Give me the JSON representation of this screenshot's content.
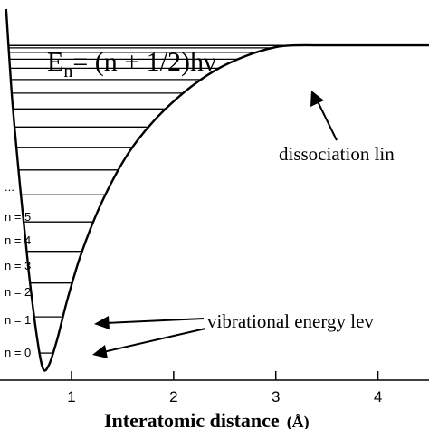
{
  "formula": {
    "lhs": "E",
    "sub": "n",
    "rhs": "= (n + 1/2)hν"
  },
  "annotations": {
    "dissociation": "dissociation lin",
    "vibrational": "vibrational energy lev"
  },
  "level_labels": [
    "...",
    "n = 5",
    "n = 4",
    "n = 3",
    "n = 2",
    "n = 1",
    "n = 0"
  ],
  "chart_data": {
    "type": "line",
    "xlabel": "Interatomic distance",
    "xlabel_unit": "(Å)",
    "x_ticks": [
      "1",
      "2",
      "3",
      "4"
    ],
    "x_tick_values": [
      1,
      2,
      3,
      4
    ],
    "xlim": [
      0.3,
      4.5
    ],
    "series": [
      {
        "x": [
          0.36,
          0.42,
          0.5,
          0.58,
          0.66,
          0.72,
          0.78,
          0.86,
          0.96,
          1.1,
          1.3,
          1.55,
          1.8,
          2.1,
          2.4,
          2.7,
          3.0,
          3.2,
          3.5,
          3.9,
          4.5
        ],
        "energy_fraction": [
          1.0,
          0.75,
          0.5,
          0.28,
          0.1,
          0.01,
          0.02,
          0.09,
          0.2,
          0.33,
          0.47,
          0.6,
          0.69,
          0.77,
          0.83,
          0.87,
          0.895,
          0.9,
          0.9,
          0.9,
          0.9
        ]
      }
    ],
    "levels": {
      "count": 17,
      "dissociation_fraction": 0.9
    }
  }
}
